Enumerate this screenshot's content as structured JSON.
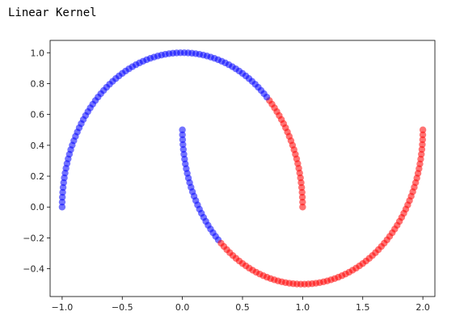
{
  "output_text": "Linear Kernel",
  "chart_data": {
    "type": "scatter",
    "title": "",
    "xlabel": "",
    "ylabel": "",
    "xlim": [
      -1.1,
      2.1
    ],
    "ylim": [
      -0.58,
      1.08
    ],
    "xticks": [
      -1.0,
      -0.5,
      0.0,
      0.5,
      1.0,
      1.5,
      2.0
    ],
    "xtick_labels": [
      "−1.0",
      "−0.5",
      "0.0",
      "0.5",
      "1.0",
      "1.5",
      "2.0"
    ],
    "yticks": [
      -0.4,
      -0.2,
      0.0,
      0.2,
      0.4,
      0.6,
      0.8,
      1.0
    ],
    "ytick_labels": [
      "−0.4",
      "−0.2",
      "0.0",
      "0.2",
      "0.4",
      "0.6",
      "0.8",
      "1.0"
    ],
    "grid": false,
    "colors": {
      "class_0": "#0000ff",
      "class_1": "#ff0000"
    },
    "points_per_moon": 100,
    "upper_moon": {
      "shape": "semicircle",
      "center": [
        0.0,
        0.0
      ],
      "radius": 1.0,
      "angle_range_deg": [
        0,
        180
      ],
      "segments": [
        {
          "from_x": -1.0,
          "to_x": 0.72,
          "color": "#0000ff"
        },
        {
          "from_x": 0.72,
          "to_x": 1.0,
          "color": "#ff0000"
        }
      ]
    },
    "lower_moon": {
      "shape": "semicircle",
      "center": [
        1.0,
        0.5
      ],
      "radius": 1.0,
      "angle_range_deg": [
        180,
        360
      ],
      "segments": [
        {
          "from_x": 0.0,
          "to_x": 0.3,
          "color": "#0000ff"
        },
        {
          "from_x": 0.3,
          "to_x": 2.0,
          "color": "#ff0000"
        }
      ]
    }
  }
}
